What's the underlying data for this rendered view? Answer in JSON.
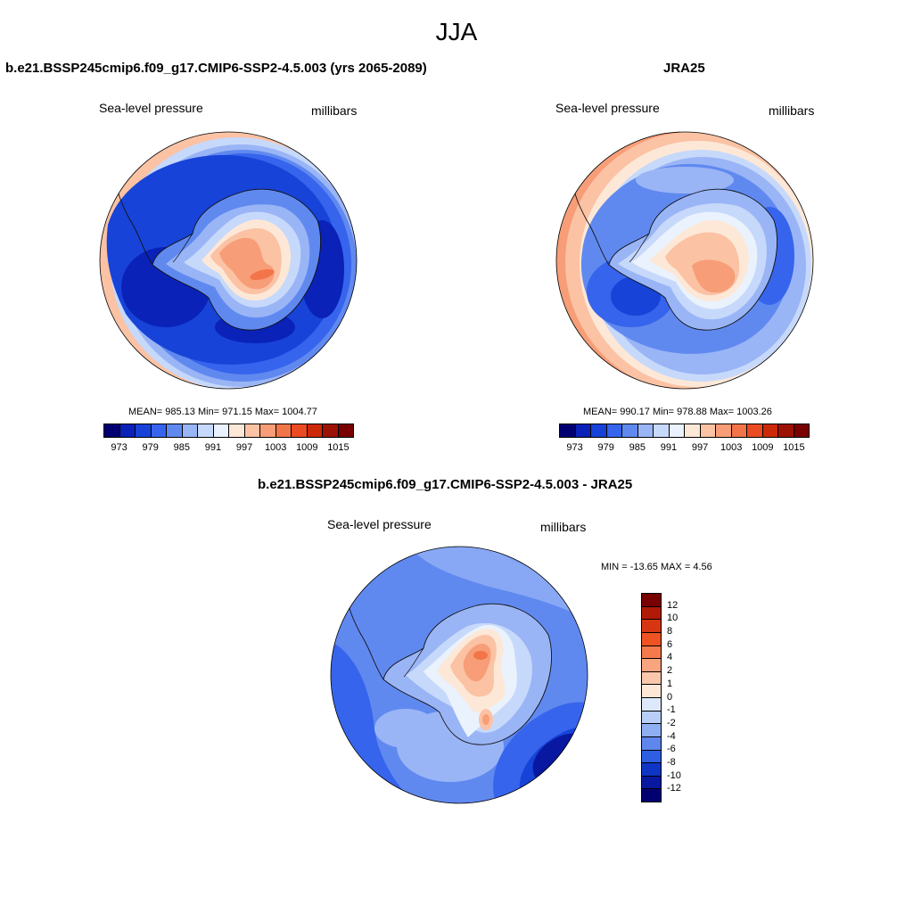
{
  "figure": {
    "title": "JJA"
  },
  "panels": [
    {
      "title": "b.e21.BSSP245cmip6.f09_g17.CMIP6-SSP2-4.5.003 (yrs 2065-2089)",
      "variable": "Sea-level pressure",
      "units": "millibars",
      "stats": "MEAN= 985.13  Min= 971.15  Max= 1004.77"
    },
    {
      "title": "JRA25",
      "variable": "Sea-level pressure",
      "units": "millibars",
      "stats": "MEAN= 990.17  Min= 978.88  Max= 1003.26"
    },
    {
      "title": "b.e21.BSSP245cmip6.f09_g17.CMIP6-SSP2-4.5.003 - JRA25",
      "variable": "Sea-level pressure",
      "units": "millibars",
      "stats": "MIN = -13.65 MAX =   4.56"
    }
  ],
  "colorbars": {
    "abs": {
      "labels": [
        "973",
        "979",
        "985",
        "991",
        "997",
        "1003",
        "1009",
        "1015"
      ],
      "colors": [
        "#020070",
        "#0a22b8",
        "#1743d8",
        "#3764ec",
        "#6089f0",
        "#9ab5f6",
        "#c7d9fb",
        "#eaf2fd",
        "#fde8d8",
        "#fbc2a4",
        "#f79d77",
        "#f27549",
        "#ea4b22",
        "#cc2908",
        "#9c1204",
        "#780000"
      ]
    },
    "diff": {
      "labels": [
        "12",
        "10",
        "8",
        "6",
        "4",
        "2",
        "1",
        "0",
        "-1",
        "-2",
        "-4",
        "-6",
        "-8",
        "-10",
        "-12"
      ],
      "colors": [
        "#780000",
        "#b01a06",
        "#d63612",
        "#ef5324",
        "#f47a4e",
        "#f8a47f",
        "#fbc7ac",
        "#fde8d8",
        "#dde9fb",
        "#b8cef7",
        "#8eaff2",
        "#5f86ec",
        "#2e5fe3",
        "#0f35c4",
        "#0818a0",
        "#020070"
      ]
    }
  },
  "map_palette": {
    "deep_blue": "#0a22b8",
    "blue": "#1743d8",
    "mid_blue": "#3764ec",
    "light_blue": "#6089f0",
    "pale_blue": "#9ab5f6",
    "ice_blue": "#c7d9fb",
    "white_blue": "#eaf2fd",
    "cream": "#fde8d8",
    "peach": "#fbc2a4",
    "salmon": "#f79d77",
    "orange": "#f27549"
  }
}
